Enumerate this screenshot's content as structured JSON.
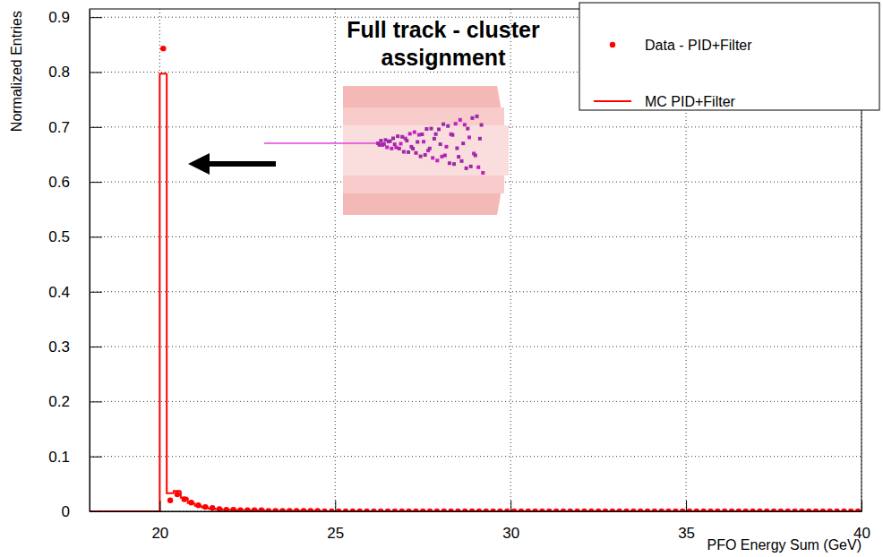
{
  "chart_data": {
    "type": "histogram",
    "annotation": "Full track - cluster assignment",
    "x_label": "PFO Energy Sum (GeV)",
    "y_label": "Normalized Entries",
    "xlim": [
      18,
      40
    ],
    "ylim": [
      0,
      0.915
    ],
    "xticks": [
      20,
      25,
      30,
      35,
      40
    ],
    "yticks": [
      0,
      0.1,
      0.2,
      0.3,
      0.4,
      0.5,
      0.6,
      0.7,
      0.8,
      0.9
    ],
    "grid": true,
    "legend": "top-right",
    "bins": [
      18,
      18.2,
      18.4,
      18.6,
      18.8,
      19,
      19.2,
      19.4,
      19.6,
      19.8,
      20,
      20.2,
      20.4,
      20.6,
      20.8,
      21,
      21.2,
      21.4,
      21.6,
      21.8,
      22,
      22.2,
      22.4,
      22.6,
      22.8,
      23,
      23.2,
      23.4,
      23.6,
      23.8,
      24,
      24.2,
      24.4,
      24.6,
      24.8,
      25,
      25.2,
      25.4,
      25.6,
      25.8,
      26,
      26.2,
      26.4,
      26.6,
      26.8,
      27,
      27.2,
      27.4,
      27.6,
      27.8,
      28,
      28.2,
      28.4,
      28.6,
      28.8,
      29,
      29.2,
      29.4,
      29.6,
      29.8,
      30,
      30.2,
      30.4,
      30.6,
      30.8,
      31,
      31.2,
      31.4,
      31.6,
      31.8,
      32,
      32.2,
      32.4,
      32.6,
      32.8,
      33,
      33.2,
      33.4,
      33.6,
      33.8,
      34,
      34.2,
      34.4,
      34.6,
      34.8,
      35,
      35.2,
      35.4,
      35.6,
      35.8,
      36,
      36.2,
      36.4,
      36.6,
      36.8,
      37,
      37.2,
      37.4,
      37.6,
      37.8,
      38,
      38.2,
      38.4,
      38.6,
      38.8,
      39,
      39.2,
      39.4,
      39.6,
      39.8,
      40
    ],
    "series": [
      {
        "name": "Data - PID+Filter",
        "type": "scatter",
        "marker": "circle",
        "color": "#ff0000",
        "values": [
          null,
          null,
          null,
          null,
          null,
          null,
          null,
          null,
          null,
          null,
          0.843,
          0.02,
          0.031,
          0.022,
          0.016,
          0.011,
          0.008,
          0.006,
          0.004,
          0.003,
          0.003,
          0.002,
          0.002,
          0.002,
          0.002,
          0.001,
          0.001,
          0.001,
          0.001,
          0.001,
          0.001,
          0.001,
          0.001,
          0,
          0,
          0,
          0,
          0,
          0,
          0,
          0,
          0,
          0,
          0,
          0,
          0,
          0,
          0,
          0,
          0,
          0,
          0,
          0,
          0,
          0,
          0,
          0,
          0,
          0,
          0,
          0,
          0,
          0,
          0,
          0,
          0,
          0,
          0,
          0,
          0,
          0,
          0,
          0,
          0,
          0,
          0,
          0,
          0,
          0,
          0,
          0,
          0,
          0,
          0,
          0,
          0,
          0,
          0,
          0,
          0,
          0,
          0,
          0,
          0,
          0,
          0,
          0,
          0,
          0,
          0,
          0,
          0,
          0,
          0,
          0,
          0,
          0,
          0,
          0,
          0
        ]
      },
      {
        "name": "MC PID+Filter",
        "type": "step",
        "line_style": "solid",
        "color": "#ff0000",
        "values": [
          0,
          0,
          0,
          0,
          0,
          0,
          0,
          0,
          0,
          0,
          0.797,
          0.033,
          0.037,
          0.025,
          0.015,
          0.01,
          0.007,
          0.005,
          0.004,
          0.003,
          0.003,
          0.002,
          0.002,
          0.002,
          0.002,
          0.001,
          0.001,
          0.001,
          0.001,
          0.001,
          0.001,
          0.001,
          0.001,
          0,
          0,
          0,
          0,
          0,
          0,
          0,
          0,
          0,
          0,
          0,
          0,
          0,
          0,
          0,
          0,
          0,
          0,
          0,
          0,
          0,
          0,
          0,
          0,
          0,
          0,
          0,
          0,
          0,
          0,
          0,
          0,
          0,
          0,
          0,
          0,
          0,
          0,
          0,
          0,
          0,
          0,
          0,
          0,
          0,
          0,
          0,
          0,
          0,
          0,
          0,
          0,
          0,
          0,
          0,
          0,
          0,
          0,
          0,
          0,
          0,
          0,
          0,
          0,
          0,
          0,
          0,
          0,
          0,
          0,
          0,
          0,
          0,
          0,
          0,
          0,
          0
        ]
      }
    ]
  }
}
